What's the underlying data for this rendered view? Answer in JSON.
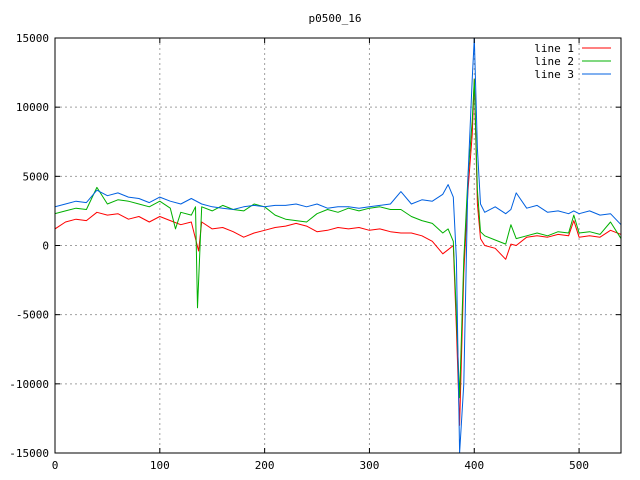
{
  "chart_data": {
    "type": "line",
    "title": "p0500_16",
    "xlabel": "",
    "ylabel": "",
    "xlim": [
      0,
      540
    ],
    "ylim": [
      -15000,
      15000
    ],
    "grid": true,
    "legend_position": "top-right",
    "x_ticks": [
      0,
      100,
      200,
      300,
      400,
      500
    ],
    "x_tick_labels": [
      "0",
      "100",
      "200",
      "300",
      "400",
      "500"
    ],
    "y_ticks": [
      -15000,
      -10000,
      -5000,
      0,
      5000,
      10000,
      15000
    ],
    "y_tick_labels": [
      "-15000",
      "-10000",
      "-5000",
      "0",
      "5000",
      "10000",
      "15000"
    ],
    "series": [
      {
        "name": "line 1",
        "color": "#ff0000",
        "points": [
          [
            0,
            1200
          ],
          [
            10,
            1700
          ],
          [
            20,
            1900
          ],
          [
            30,
            1800
          ],
          [
            40,
            2400
          ],
          [
            50,
            2200
          ],
          [
            60,
            2300
          ],
          [
            70,
            1900
          ],
          [
            80,
            2100
          ],
          [
            90,
            1700
          ],
          [
            100,
            2100
          ],
          [
            110,
            1800
          ],
          [
            120,
            1500
          ],
          [
            130,
            1700
          ],
          [
            137,
            -400
          ],
          [
            140,
            1700
          ],
          [
            150,
            1200
          ],
          [
            160,
            1300
          ],
          [
            170,
            1000
          ],
          [
            180,
            600
          ],
          [
            190,
            900
          ],
          [
            200,
            1100
          ],
          [
            210,
            1300
          ],
          [
            220,
            1400
          ],
          [
            230,
            1600
          ],
          [
            240,
            1400
          ],
          [
            250,
            1000
          ],
          [
            260,
            1100
          ],
          [
            270,
            1300
          ],
          [
            280,
            1200
          ],
          [
            290,
            1300
          ],
          [
            300,
            1100
          ],
          [
            310,
            1200
          ],
          [
            320,
            1000
          ],
          [
            330,
            900
          ],
          [
            340,
            900
          ],
          [
            350,
            700
          ],
          [
            360,
            300
          ],
          [
            370,
            -600
          ],
          [
            375,
            -300
          ],
          [
            380,
            0
          ],
          [
            383,
            -6000
          ],
          [
            386,
            -13000
          ],
          [
            390,
            -2000
          ],
          [
            394,
            4000
          ],
          [
            398,
            8000
          ],
          [
            400,
            12000
          ],
          [
            403,
            3000
          ],
          [
            406,
            500
          ],
          [
            410,
            0
          ],
          [
            420,
            -200
          ],
          [
            430,
            -1000
          ],
          [
            435,
            100
          ],
          [
            440,
            0
          ],
          [
            450,
            600
          ],
          [
            460,
            700
          ],
          [
            470,
            600
          ],
          [
            480,
            800
          ],
          [
            490,
            700
          ],
          [
            495,
            1800
          ],
          [
            500,
            600
          ],
          [
            510,
            700
          ],
          [
            520,
            600
          ],
          [
            530,
            1100
          ],
          [
            540,
            800
          ]
        ]
      },
      {
        "name": "line 2",
        "color": "#00b000",
        "points": [
          [
            0,
            2300
          ],
          [
            10,
            2500
          ],
          [
            20,
            2700
          ],
          [
            30,
            2600
          ],
          [
            40,
            4200
          ],
          [
            50,
            3000
          ],
          [
            60,
            3300
          ],
          [
            70,
            3200
          ],
          [
            80,
            3000
          ],
          [
            90,
            2800
          ],
          [
            100,
            3200
          ],
          [
            110,
            2700
          ],
          [
            115,
            1200
          ],
          [
            120,
            2400
          ],
          [
            130,
            2200
          ],
          [
            134,
            2800
          ],
          [
            136,
            -4500
          ],
          [
            140,
            2800
          ],
          [
            150,
            2500
          ],
          [
            160,
            2900
          ],
          [
            170,
            2600
          ],
          [
            180,
            2500
          ],
          [
            190,
            3000
          ],
          [
            200,
            2800
          ],
          [
            210,
            2200
          ],
          [
            220,
            1900
          ],
          [
            230,
            1800
          ],
          [
            240,
            1700
          ],
          [
            250,
            2300
          ],
          [
            260,
            2600
          ],
          [
            270,
            2400
          ],
          [
            280,
            2700
          ],
          [
            290,
            2500
          ],
          [
            300,
            2700
          ],
          [
            310,
            2800
          ],
          [
            320,
            2600
          ],
          [
            330,
            2600
          ],
          [
            340,
            2100
          ],
          [
            350,
            1800
          ],
          [
            360,
            1600
          ],
          [
            370,
            900
          ],
          [
            375,
            1200
          ],
          [
            380,
            300
          ],
          [
            383,
            -5000
          ],
          [
            386,
            -11000
          ],
          [
            390,
            -1000
          ],
          [
            394,
            5000
          ],
          [
            398,
            9000
          ],
          [
            400,
            12000
          ],
          [
            403,
            4000
          ],
          [
            406,
            1000
          ],
          [
            410,
            700
          ],
          [
            420,
            400
          ],
          [
            430,
            100
          ],
          [
            435,
            1500
          ],
          [
            440,
            500
          ],
          [
            450,
            700
          ],
          [
            460,
            900
          ],
          [
            470,
            700
          ],
          [
            480,
            1000
          ],
          [
            490,
            900
          ],
          [
            495,
            2200
          ],
          [
            500,
            900
          ],
          [
            510,
            1000
          ],
          [
            520,
            800
          ],
          [
            530,
            1700
          ],
          [
            540,
            500
          ]
        ]
      },
      {
        "name": "line 3",
        "color": "#0060e0",
        "points": [
          [
            0,
            2800
          ],
          [
            10,
            3000
          ],
          [
            20,
            3200
          ],
          [
            30,
            3100
          ],
          [
            40,
            4000
          ],
          [
            50,
            3600
          ],
          [
            60,
            3800
          ],
          [
            70,
            3500
          ],
          [
            80,
            3400
          ],
          [
            90,
            3100
          ],
          [
            100,
            3500
          ],
          [
            110,
            3200
          ],
          [
            120,
            3000
          ],
          [
            130,
            3400
          ],
          [
            140,
            3000
          ],
          [
            150,
            2800
          ],
          [
            160,
            2700
          ],
          [
            170,
            2600
          ],
          [
            180,
            2800
          ],
          [
            190,
            2900
          ],
          [
            200,
            2800
          ],
          [
            210,
            2900
          ],
          [
            220,
            2900
          ],
          [
            230,
            3000
          ],
          [
            240,
            2800
          ],
          [
            250,
            3000
          ],
          [
            260,
            2700
          ],
          [
            270,
            2800
          ],
          [
            280,
            2800
          ],
          [
            290,
            2700
          ],
          [
            300,
            2800
          ],
          [
            310,
            2900
          ],
          [
            320,
            3000
          ],
          [
            330,
            3900
          ],
          [
            340,
            3000
          ],
          [
            350,
            3300
          ],
          [
            360,
            3200
          ],
          [
            370,
            3700
          ],
          [
            375,
            4400
          ],
          [
            380,
            3500
          ],
          [
            383,
            -1000
          ],
          [
            386,
            -15000
          ],
          [
            390,
            -10000
          ],
          [
            394,
            5000
          ],
          [
            398,
            12000
          ],
          [
            400,
            15000
          ],
          [
            403,
            7000
          ],
          [
            406,
            3000
          ],
          [
            410,
            2400
          ],
          [
            420,
            2800
          ],
          [
            430,
            2300
          ],
          [
            435,
            2600
          ],
          [
            440,
            3800
          ],
          [
            450,
            2700
          ],
          [
            460,
            2900
          ],
          [
            470,
            2400
          ],
          [
            480,
            2500
          ],
          [
            490,
            2300
          ],
          [
            495,
            2500
          ],
          [
            500,
            2300
          ],
          [
            510,
            2500
          ],
          [
            520,
            2200
          ],
          [
            530,
            2300
          ],
          [
            540,
            1500
          ]
        ]
      }
    ]
  }
}
